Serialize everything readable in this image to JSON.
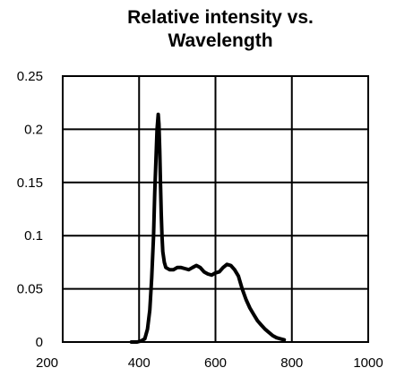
{
  "chart_data": {
    "type": "line",
    "title_line1": "Relative intensity vs.",
    "title_line2": "Wavelength",
    "xlabel": "",
    "ylabel": "",
    "xlim": [
      200,
      1000
    ],
    "ylim": [
      0,
      0.25
    ],
    "x_ticks": [
      "200",
      "400",
      "600",
      "800",
      "1000"
    ],
    "y_ticks": [
      "0",
      "0.05",
      "0.1",
      "0.15",
      "0.2",
      "0.25"
    ],
    "grid": true,
    "legend": "none",
    "line_color": "#000000",
    "series": [
      {
        "x": [
          380,
          395,
          405,
          415,
          422,
          428,
          433,
          438,
          441,
          444,
          447,
          450,
          452,
          454,
          456,
          458,
          460,
          462,
          466,
          470,
          480,
          490,
          500,
          510,
          520,
          530,
          540,
          550,
          560,
          570,
          580,
          590,
          600,
          610,
          620,
          630,
          640,
          650,
          660,
          670,
          680,
          690,
          700,
          710,
          720,
          730,
          740,
          750,
          760,
          770,
          780
        ],
        "y": [
          0.0,
          0.0,
          0.001,
          0.003,
          0.012,
          0.03,
          0.06,
          0.1,
          0.14,
          0.17,
          0.2,
          0.214,
          0.205,
          0.18,
          0.15,
          0.12,
          0.1,
          0.085,
          0.075,
          0.07,
          0.068,
          0.068,
          0.07,
          0.07,
          0.069,
          0.068,
          0.07,
          0.072,
          0.07,
          0.066,
          0.064,
          0.063,
          0.065,
          0.066,
          0.07,
          0.073,
          0.072,
          0.068,
          0.062,
          0.05,
          0.04,
          0.032,
          0.026,
          0.02,
          0.016,
          0.012,
          0.009,
          0.006,
          0.004,
          0.003,
          0.002
        ]
      }
    ]
  }
}
